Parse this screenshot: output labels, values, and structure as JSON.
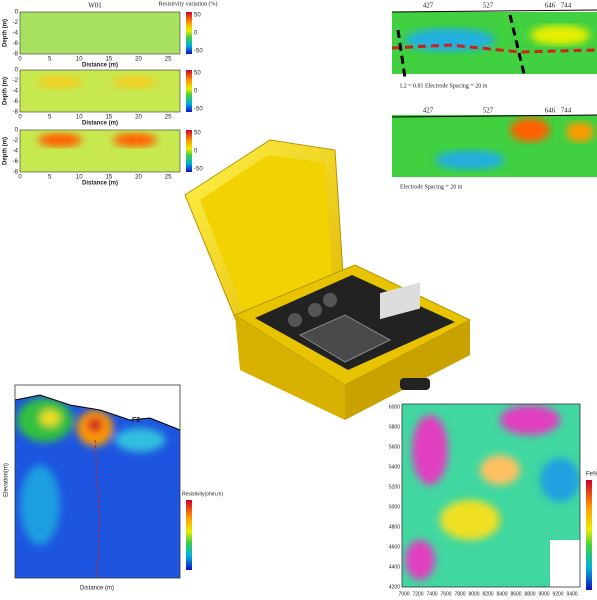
{
  "top_left": {
    "marker": "W01",
    "colorbar_title": "Resistivity variation (%)",
    "y_label": "Depth (m)",
    "x_label": "Distance (m)",
    "x_ticks": [
      "0",
      "5",
      "10",
      "15",
      "20",
      "25"
    ],
    "y_ticks": [
      "0",
      "-2",
      "-4",
      "-6",
      "-8"
    ],
    "colorbar_ticks": [
      "50",
      "0",
      "-50"
    ]
  },
  "top_right": {
    "stations": [
      "427",
      "527",
      "646",
      "744"
    ],
    "caption_1": "L2 = 0.81   Electrode Spacing = 20 m",
    "caption_2": "Electrode Spacing = 20 m"
  },
  "bottom_left": {
    "y_label": "Elevation(m)",
    "x_label": "Distance (m)",
    "colorbar_title": "Resistivity(ohm.m)",
    "annotation": "F2"
  },
  "bottom_right": {
    "y_ticks": [
      "6000",
      "5800",
      "5600",
      "5400",
      "5200",
      "5000",
      "4800",
      "4600",
      "4400",
      "4200"
    ],
    "x_ticks": [
      "7000",
      "7200",
      "7400",
      "7600",
      "7800",
      "8000",
      "8200",
      "8400",
      "8600",
      "8800",
      "9000",
      "9200",
      "9400"
    ],
    "colorbar_title": "Fe%"
  }
}
